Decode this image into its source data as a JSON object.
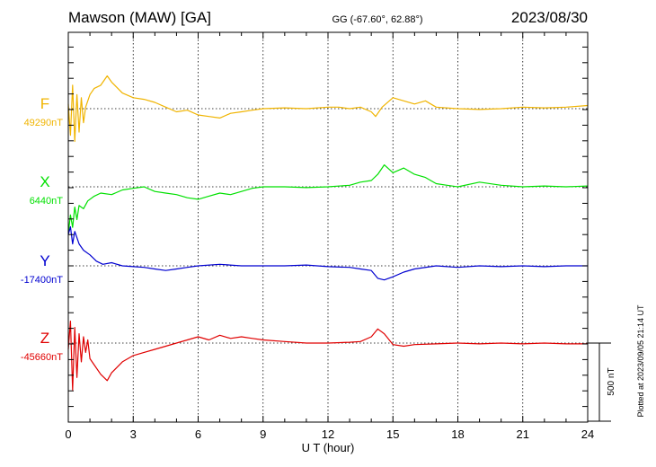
{
  "header": {
    "station": "Mawson (MAW)  [GA]",
    "coords": "GG (-67.60°,  62.88°)",
    "date": "2023/08/30"
  },
  "side_note": "Plotted at 2023/09/05 21:14 UT",
  "scale_label": "500 nT",
  "chart_data": {
    "type": "line",
    "xlabel": "U T (hour)",
    "xlim": [
      0,
      24
    ],
    "xticks": [
      "0",
      "3",
      "6",
      "9",
      "12",
      "15",
      "18",
      "21",
      "24"
    ],
    "scale_bar_nT": 500,
    "grid": true,
    "series": [
      {
        "name": "F",
        "baseline_label": "49290nT",
        "baseline": 49290,
        "color": "#f0b400",
        "x": [
          0,
          0.1,
          0.2,
          0.3,
          0.4,
          0.5,
          0.6,
          0.7,
          0.8,
          1.0,
          1.2,
          1.5,
          1.8,
          2.0,
          2.5,
          3.0,
          3.5,
          4.0,
          4.5,
          5.0,
          5.5,
          6.0,
          6.5,
          7.0,
          7.5,
          8.0,
          8.5,
          9.0,
          10.0,
          11.0,
          12.0,
          12.5,
          13.0,
          13.5,
          14.0,
          14.2,
          14.5,
          15.0,
          15.5,
          16.0,
          16.5,
          17.0,
          18.0,
          19.0,
          20.0,
          21.0,
          22.0,
          23.0,
          24.0
        ],
        "values": [
          49320,
          49120,
          49440,
          49080,
          49380,
          49140,
          49360,
          49200,
          49300,
          49380,
          49420,
          49440,
          49500,
          49460,
          49390,
          49360,
          49350,
          49330,
          49300,
          49270,
          49280,
          49250,
          49240,
          49230,
          49260,
          49270,
          49280,
          49290,
          49295,
          49290,
          49300,
          49300,
          49290,
          49300,
          49270,
          49240,
          49300,
          49360,
          49340,
          49320,
          49340,
          49300,
          49290,
          49285,
          49290,
          49300,
          49295,
          49300,
          49310
        ]
      },
      {
        "name": "X",
        "baseline_label": "6440nT",
        "baseline": 6440,
        "color": "#00e000",
        "x": [
          0,
          0.1,
          0.2,
          0.3,
          0.4,
          0.5,
          0.7,
          0.9,
          1.2,
          1.5,
          2.0,
          2.5,
          3.0,
          3.5,
          4.0,
          4.5,
          5.0,
          5.5,
          6.0,
          6.5,
          7.0,
          7.5,
          8.0,
          8.5,
          9.0,
          10.0,
          11.0,
          12.0,
          13.0,
          13.5,
          14.0,
          14.3,
          14.6,
          15.0,
          15.5,
          16.0,
          16.5,
          17.0,
          17.5,
          18.0,
          19.0,
          20.0,
          21.0,
          22.0,
          23.0,
          24.0
        ],
        "values": [
          6140,
          6260,
          6180,
          6310,
          6230,
          6320,
          6300,
          6350,
          6380,
          6400,
          6390,
          6420,
          6430,
          6440,
          6410,
          6400,
          6390,
          6370,
          6360,
          6380,
          6400,
          6390,
          6410,
          6430,
          6440,
          6440,
          6435,
          6440,
          6450,
          6470,
          6480,
          6520,
          6580,
          6530,
          6560,
          6520,
          6500,
          6460,
          6450,
          6440,
          6470,
          6450,
          6440,
          6445,
          6440,
          6445
        ]
      },
      {
        "name": "Y",
        "baseline_label": "-17400nT",
        "baseline": -17400,
        "color": "#0000d0",
        "x": [
          0,
          0.1,
          0.2,
          0.3,
          0.5,
          0.7,
          1.0,
          1.3,
          1.6,
          2.0,
          2.5,
          3.0,
          3.5,
          4.0,
          4.5,
          5.0,
          5.5,
          6.0,
          7.0,
          8.0,
          9.0,
          10.0,
          11.0,
          12.0,
          13.0,
          13.5,
          14.0,
          14.3,
          14.6,
          15.0,
          15.5,
          16.0,
          17.0,
          18.0,
          19.0,
          20.0,
          21.0,
          22.0,
          23.0,
          24.0
        ],
        "values": [
          -17200,
          -17150,
          -17260,
          -17180,
          -17260,
          -17300,
          -17330,
          -17370,
          -17390,
          -17380,
          -17400,
          -17405,
          -17410,
          -17420,
          -17430,
          -17420,
          -17410,
          -17400,
          -17390,
          -17400,
          -17400,
          -17400,
          -17395,
          -17405,
          -17410,
          -17420,
          -17430,
          -17480,
          -17490,
          -17470,
          -17440,
          -17420,
          -17400,
          -17410,
          -17400,
          -17405,
          -17400,
          -17405,
          -17400,
          -17400
        ]
      },
      {
        "name": "Z",
        "baseline_label": "-45660nT",
        "baseline": -45660,
        "color": "#e00000",
        "x": [
          0,
          0.1,
          0.2,
          0.3,
          0.4,
          0.5,
          0.6,
          0.7,
          0.8,
          0.9,
          1.0,
          1.2,
          1.5,
          1.8,
          2.0,
          2.5,
          3.0,
          3.5,
          4.0,
          4.5,
          5.0,
          5.5,
          6.0,
          6.5,
          7.0,
          7.5,
          8.0,
          8.5,
          9.0,
          10.0,
          11.0,
          12.0,
          13.0,
          13.5,
          14.0,
          14.3,
          14.6,
          15.0,
          15.5,
          16.0,
          17.0,
          18.0,
          19.0,
          20.0,
          21.0,
          22.0,
          23.0,
          24.0
        ],
        "values": [
          -45700,
          -45520,
          -45960,
          -45560,
          -45880,
          -45600,
          -45780,
          -45620,
          -45720,
          -45640,
          -45760,
          -45800,
          -45860,
          -45900,
          -45850,
          -45780,
          -45740,
          -45720,
          -45700,
          -45680,
          -45660,
          -45640,
          -45620,
          -45640,
          -45610,
          -45630,
          -45620,
          -45630,
          -45640,
          -45650,
          -45660,
          -45660,
          -45655,
          -45650,
          -45620,
          -45570,
          -45600,
          -45670,
          -45680,
          -45670,
          -45665,
          -45660,
          -45665,
          -45660,
          -45665,
          -45660,
          -45665,
          -45665
        ]
      }
    ]
  }
}
